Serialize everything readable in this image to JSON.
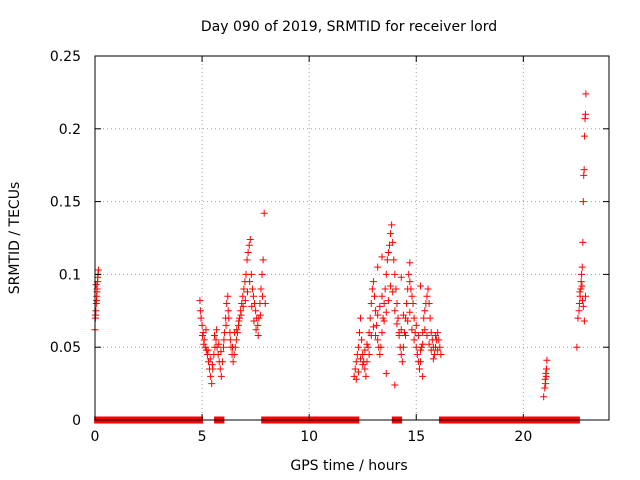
{
  "chart_data": {
    "type": "scatter",
    "title": "Day 090 of 2019, SRMTID for receiver lord",
    "xlabel": "GPS time / hours",
    "ylabel": "SRMTID / TECUs",
    "xlim": [
      0,
      24
    ],
    "ylim": [
      0,
      0.25
    ],
    "grid": true,
    "marker": "+",
    "color": "#ff0000",
    "x_ticks": [
      0,
      5,
      10,
      15,
      20
    ],
    "x_tick_labels": [
      "0",
      "5",
      "10",
      "15",
      "20"
    ],
    "y_ticks": [
      0,
      0.05,
      0.1,
      0.15,
      0.2,
      0.25
    ],
    "y_tick_labels": [
      "0",
      "0.05",
      "0.1",
      "0.15",
      "0.2",
      "0.25"
    ],
    "zero_bands": [
      [
        0.1,
        4.9
      ],
      [
        5.7,
        5.9
      ],
      [
        7.9,
        12.2
      ],
      [
        14.0,
        14.2
      ],
      [
        16.2,
        22.5
      ]
    ],
    "series": [
      {
        "name": "SRMTID",
        "points": [
          [
            0.0,
            0.062
          ],
          [
            0.02,
            0.07
          ],
          [
            0.04,
            0.075
          ],
          [
            0.06,
            0.08
          ],
          [
            0.08,
            0.085
          ],
          [
            0.1,
            0.09
          ],
          [
            0.12,
            0.095
          ],
          [
            0.14,
            0.1
          ],
          [
            0.16,
            0.103
          ],
          [
            0.05,
            0.093
          ],
          [
            0.09,
            0.088
          ],
          [
            0.13,
            0.098
          ],
          [
            0.03,
            0.072
          ],
          [
            0.07,
            0.082
          ],
          [
            4.9,
            0.082
          ],
          [
            4.92,
            0.075
          ],
          [
            4.95,
            0.07
          ],
          [
            5.0,
            0.065
          ],
          [
            5.05,
            0.06
          ],
          [
            5.1,
            0.055
          ],
          [
            5.15,
            0.05
          ],
          [
            5.2,
            0.048
          ],
          [
            5.25,
            0.045
          ],
          [
            5.3,
            0.04
          ],
          [
            5.35,
            0.035
          ],
          [
            5.4,
            0.03
          ],
          [
            5.45,
            0.025
          ],
          [
            5.5,
            0.035
          ],
          [
            5.55,
            0.045
          ],
          [
            5.6,
            0.05
          ],
          [
            5.65,
            0.055
          ],
          [
            5.7,
            0.05
          ],
          [
            5.75,
            0.045
          ],
          [
            5.8,
            0.04
          ],
          [
            5.85,
            0.035
          ],
          [
            5.9,
            0.03
          ],
          [
            5.95,
            0.04
          ],
          [
            6.0,
            0.05
          ],
          [
            6.05,
            0.06
          ],
          [
            6.1,
            0.07
          ],
          [
            6.15,
            0.08
          ],
          [
            6.2,
            0.085
          ],
          [
            6.25,
            0.07
          ],
          [
            6.3,
            0.06
          ],
          [
            6.35,
            0.05
          ],
          [
            6.4,
            0.045
          ],
          [
            6.45,
            0.04
          ],
          [
            6.5,
            0.045
          ],
          [
            6.55,
            0.05
          ],
          [
            6.6,
            0.055
          ],
          [
            6.65,
            0.06
          ],
          [
            6.7,
            0.065
          ],
          [
            6.75,
            0.07
          ],
          [
            6.8,
            0.075
          ],
          [
            6.85,
            0.08
          ],
          [
            6.9,
            0.085
          ],
          [
            6.95,
            0.09
          ],
          [
            7.0,
            0.095
          ],
          [
            7.05,
            0.1
          ],
          [
            7.1,
            0.11
          ],
          [
            7.15,
            0.115
          ],
          [
            7.2,
            0.12
          ],
          [
            7.25,
            0.124
          ],
          [
            7.3,
            0.1
          ],
          [
            7.35,
            0.09
          ],
          [
            7.4,
            0.085
          ],
          [
            7.45,
            0.08
          ],
          [
            7.5,
            0.075
          ],
          [
            7.55,
            0.07
          ],
          [
            7.6,
            0.065
          ],
          [
            7.65,
            0.07
          ],
          [
            7.7,
            0.08
          ],
          [
            7.75,
            0.09
          ],
          [
            7.8,
            0.1
          ],
          [
            7.85,
            0.11
          ],
          [
            7.9,
            0.142
          ],
          [
            7.95,
            0.08
          ],
          [
            5.02,
            0.058
          ],
          [
            5.08,
            0.052
          ],
          [
            5.18,
            0.062
          ],
          [
            5.28,
            0.048
          ],
          [
            5.38,
            0.042
          ],
          [
            5.48,
            0.038
          ],
          [
            5.58,
            0.058
          ],
          [
            5.68,
            0.062
          ],
          [
            5.78,
            0.052
          ],
          [
            5.88,
            0.047
          ],
          [
            6.02,
            0.055
          ],
          [
            6.12,
            0.065
          ],
          [
            6.22,
            0.075
          ],
          [
            6.32,
            0.055
          ],
          [
            6.42,
            0.05
          ],
          [
            6.52,
            0.06
          ],
          [
            6.62,
            0.062
          ],
          [
            6.72,
            0.068
          ],
          [
            6.82,
            0.072
          ],
          [
            6.92,
            0.078
          ],
          [
            7.02,
            0.082
          ],
          [
            7.12,
            0.088
          ],
          [
            7.22,
            0.095
          ],
          [
            7.32,
            0.078
          ],
          [
            7.42,
            0.068
          ],
          [
            7.52,
            0.062
          ],
          [
            7.62,
            0.058
          ],
          [
            7.72,
            0.072
          ],
          [
            7.82,
            0.085
          ],
          [
            12.1,
            0.03
          ],
          [
            12.15,
            0.035
          ],
          [
            12.2,
            0.04
          ],
          [
            12.25,
            0.045
          ],
          [
            12.3,
            0.05
          ],
          [
            12.35,
            0.06
          ],
          [
            12.4,
            0.07
          ],
          [
            12.45,
            0.055
          ],
          [
            12.5,
            0.045
          ],
          [
            12.55,
            0.04
          ],
          [
            12.6,
            0.035
          ],
          [
            12.65,
            0.03
          ],
          [
            12.7,
            0.04
          ],
          [
            12.75,
            0.05
          ],
          [
            12.8,
            0.06
          ],
          [
            12.85,
            0.07
          ],
          [
            12.9,
            0.08
          ],
          [
            12.95,
            0.09
          ],
          [
            13.0,
            0.095
          ],
          [
            13.05,
            0.085
          ],
          [
            13.1,
            0.075
          ],
          [
            13.15,
            0.065
          ],
          [
            13.2,
            0.055
          ],
          [
            13.25,
            0.05
          ],
          [
            13.3,
            0.045
          ],
          [
            13.35,
            0.05
          ],
          [
            13.4,
            0.06
          ],
          [
            13.45,
            0.07
          ],
          [
            13.5,
            0.08
          ],
          [
            13.55,
            0.09
          ],
          [
            13.6,
            0.1
          ],
          [
            13.65,
            0.11
          ],
          [
            13.7,
            0.115
          ],
          [
            13.75,
            0.12
          ],
          [
            13.8,
            0.128
          ],
          [
            13.85,
            0.134
          ],
          [
            13.9,
            0.122
          ],
          [
            13.95,
            0.11
          ],
          [
            14.0,
            0.1
          ],
          [
            14.05,
            0.09
          ],
          [
            14.1,
            0.08
          ],
          [
            14.15,
            0.07
          ],
          [
            14.2,
            0.06
          ],
          [
            14.25,
            0.05
          ],
          [
            14.3,
            0.045
          ],
          [
            14.35,
            0.04
          ],
          [
            14.4,
            0.05
          ],
          [
            14.45,
            0.06
          ],
          [
            14.5,
            0.07
          ],
          [
            14.55,
            0.08
          ],
          [
            14.6,
            0.09
          ],
          [
            14.65,
            0.1
          ],
          [
            14.7,
            0.095
          ],
          [
            14.75,
            0.09
          ],
          [
            14.8,
            0.085
          ],
          [
            14.85,
            0.08
          ],
          [
            14.9,
            0.07
          ],
          [
            14.95,
            0.06
          ],
          [
            15.0,
            0.05
          ],
          [
            15.05,
            0.045
          ],
          [
            15.1,
            0.04
          ],
          [
            15.15,
            0.035
          ],
          [
            15.2,
            0.04
          ],
          [
            15.25,
            0.05
          ],
          [
            15.3,
            0.06
          ],
          [
            15.35,
            0.07
          ],
          [
            15.4,
            0.075
          ],
          [
            15.45,
            0.08
          ],
          [
            15.5,
            0.085
          ],
          [
            15.55,
            0.09
          ],
          [
            15.6,
            0.08
          ],
          [
            15.65,
            0.07
          ],
          [
            15.7,
            0.06
          ],
          [
            15.75,
            0.055
          ],
          [
            15.8,
            0.05
          ],
          [
            15.85,
            0.045
          ],
          [
            15.9,
            0.05
          ],
          [
            15.95,
            0.055
          ],
          [
            16.0,
            0.06
          ],
          [
            16.05,
            0.055
          ],
          [
            16.1,
            0.05
          ],
          [
            16.15,
            0.045
          ],
          [
            12.2,
            0.028
          ],
          [
            12.3,
            0.033
          ],
          [
            12.4,
            0.042
          ],
          [
            12.5,
            0.038
          ],
          [
            12.6,
            0.048
          ],
          [
            12.7,
            0.052
          ],
          [
            12.8,
            0.045
          ],
          [
            12.9,
            0.058
          ],
          [
            13.0,
            0.064
          ],
          [
            13.1,
            0.058
          ],
          [
            13.2,
            0.072
          ],
          [
            13.3,
            0.078
          ],
          [
            13.4,
            0.085
          ],
          [
            13.5,
            0.068
          ],
          [
            13.6,
            0.074
          ],
          [
            13.7,
            0.082
          ],
          [
            13.8,
            0.092
          ],
          [
            13.9,
            0.088
          ],
          [
            14.0,
            0.075
          ],
          [
            14.1,
            0.066
          ],
          [
            14.2,
            0.058
          ],
          [
            14.3,
            0.062
          ],
          [
            14.4,
            0.072
          ],
          [
            14.5,
            0.058
          ],
          [
            14.6,
            0.068
          ],
          [
            14.7,
            0.074
          ],
          [
            14.8,
            0.062
          ],
          [
            14.9,
            0.055
          ],
          [
            15.0,
            0.065
          ],
          [
            15.1,
            0.058
          ],
          [
            15.2,
            0.048
          ],
          [
            15.3,
            0.052
          ],
          [
            15.4,
            0.062
          ],
          [
            15.5,
            0.058
          ],
          [
            15.6,
            0.052
          ],
          [
            15.7,
            0.048
          ],
          [
            15.8,
            0.042
          ],
          [
            15.9,
            0.058
          ],
          [
            16.0,
            0.048
          ],
          [
            13.2,
            0.105
          ],
          [
            13.4,
            0.112
          ],
          [
            14.3,
            0.098
          ],
          [
            14.7,
            0.108
          ],
          [
            15.2,
            0.092
          ],
          [
            14.0,
            0.024
          ],
          [
            13.6,
            0.032
          ],
          [
            15.3,
            0.03
          ],
          [
            20.95,
            0.016
          ],
          [
            21.0,
            0.022
          ],
          [
            21.02,
            0.028
          ],
          [
            21.05,
            0.032
          ],
          [
            21.08,
            0.035
          ],
          [
            21.1,
            0.041
          ],
          [
            21.04,
            0.025
          ],
          [
            21.07,
            0.03
          ],
          [
            22.5,
            0.05
          ],
          [
            22.55,
            0.07
          ],
          [
            22.6,
            0.075
          ],
          [
            22.62,
            0.08
          ],
          [
            22.65,
            0.085
          ],
          [
            22.68,
            0.09
          ],
          [
            22.7,
            0.095
          ],
          [
            22.72,
            0.1
          ],
          [
            22.75,
            0.105
          ],
          [
            22.78,
            0.122
          ],
          [
            22.8,
            0.15
          ],
          [
            22.82,
            0.168
          ],
          [
            22.84,
            0.172
          ],
          [
            22.86,
            0.195
          ],
          [
            22.88,
            0.207
          ],
          [
            22.9,
            0.21
          ],
          [
            22.92,
            0.224
          ],
          [
            22.64,
            0.088
          ],
          [
            22.74,
            0.092
          ],
          [
            22.76,
            0.082
          ],
          [
            22.8,
            0.078
          ],
          [
            22.85,
            0.068
          ],
          [
            22.9,
            0.085
          ]
        ]
      }
    ]
  }
}
